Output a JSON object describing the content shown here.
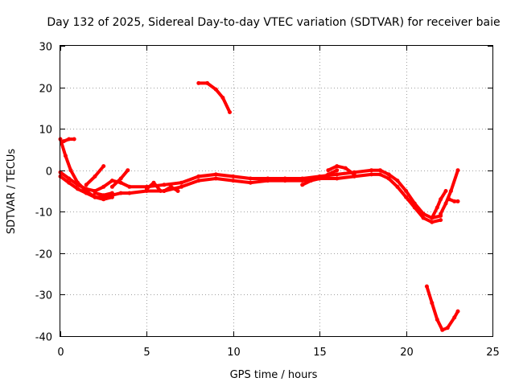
{
  "chart_data": {
    "type": "line",
    "title": "Day 132 of 2025, Sidereal Day-to-day VTEC variation (SDTVAR) for receiver baie",
    "xlabel": "GPS time / hours",
    "ylabel": "SDTVAR / TECUs",
    "xlim": [
      0,
      25
    ],
    "ylim": [
      -40,
      30
    ],
    "xticks": [
      0,
      5,
      10,
      15,
      20,
      25
    ],
    "yticks": [
      -40,
      -30,
      -20,
      -10,
      0,
      10,
      20,
      30
    ],
    "grid": true,
    "color": "#ff0000",
    "series": [
      {
        "name": "main-band-upper",
        "x": [
          0,
          0.5,
          1,
          1.5,
          2,
          2.5,
          3,
          3.5,
          4,
          5,
          6,
          7,
          8,
          9,
          10,
          11,
          12,
          13,
          14,
          15,
          16,
          17,
          18,
          18.5,
          19,
          19.5,
          20,
          20.5,
          21,
          21.5,
          22
        ],
        "values": [
          -0.5,
          -2,
          -3.5,
          -4.5,
          -5,
          -4,
          -2.5,
          -3,
          -4,
          -4,
          -3.5,
          -3,
          -1.5,
          -1,
          -1.5,
          -2,
          -2,
          -2,
          -2,
          -1.5,
          -1,
          -0.5,
          0,
          0,
          -1,
          -2.5,
          -5,
          -8,
          -10.5,
          -11.5,
          -11
        ]
      },
      {
        "name": "main-band-lower",
        "x": [
          0,
          0.5,
          1,
          1.5,
          2,
          2.5,
          3,
          3.5,
          4,
          5,
          6,
          7,
          8,
          9,
          10,
          11,
          12,
          13,
          14,
          15,
          16,
          17,
          18,
          18.5,
          19,
          19.5,
          20,
          20.5,
          21,
          21.5,
          22
        ],
        "values": [
          -1.5,
          -3,
          -4.5,
          -5.5,
          -6.5,
          -6.5,
          -6,
          -5.5,
          -5.5,
          -5,
          -5,
          -4,
          -2.5,
          -2,
          -2.5,
          -3,
          -2.5,
          -2.5,
          -2.5,
          -2,
          -2,
          -1.5,
          -1,
          -1,
          -2,
          -4,
          -6.5,
          -9,
          -11.5,
          -12.5,
          -12
        ]
      },
      {
        "name": "early-arc",
        "x": [
          0,
          0.3,
          0.6,
          1,
          1.5,
          2,
          2.5,
          3
        ],
        "values": [
          7.5,
          3.5,
          0,
          -3,
          -5,
          -6.5,
          -7,
          -6.5
        ]
      },
      {
        "name": "early-spike",
        "x": [
          0.2,
          0.5,
          0.8
        ],
        "values": [
          7,
          7.5,
          7.5
        ]
      },
      {
        "name": "rise-0530",
        "x": [
          1.5,
          2,
          2.5
        ],
        "values": [
          -3.5,
          -1.5,
          1
        ]
      },
      {
        "name": "rise-0400",
        "x": [
          3,
          3.5,
          3.9
        ],
        "values": [
          -4,
          -2,
          0
        ]
      },
      {
        "name": "dip-0230",
        "x": [
          2,
          2.5,
          3
        ],
        "values": [
          -5.5,
          -6,
          -5.5
        ]
      },
      {
        "name": "spike-0530",
        "x": [
          5.0,
          5.4,
          5.8
        ],
        "values": [
          -4.5,
          -3,
          -5
        ]
      },
      {
        "name": "spike-0630",
        "x": [
          6.0,
          6.4,
          6.8
        ],
        "values": [
          -5,
          -4,
          -5
        ]
      },
      {
        "name": "upper-arc-08h",
        "x": [
          8.0,
          8.5,
          9.0,
          9.4,
          9.8
        ],
        "values": [
          21,
          21,
          19.5,
          17.5,
          14
        ]
      },
      {
        "name": "mid-extra-15h",
        "x": [
          14.0,
          14.5,
          15.0,
          15.5,
          16.0
        ],
        "values": [
          -3.5,
          -2.5,
          -2,
          -1,
          0
        ]
      },
      {
        "name": "mid-extra-16h",
        "x": [
          15.5,
          16.0,
          16.5,
          17.0
        ],
        "values": [
          0,
          1,
          0.5,
          -1
        ]
      },
      {
        "name": "late-rise-22h",
        "x": [
          21.5,
          21.8,
          22.0,
          22.3
        ],
        "values": [
          -11.5,
          -9,
          -7,
          -5
        ]
      },
      {
        "name": "late-rise-23h",
        "x": [
          22.0,
          22.3,
          22.6,
          23.0
        ],
        "values": [
          -10.5,
          -8,
          -5,
          0
        ]
      },
      {
        "name": "late-tail",
        "x": [
          22.5,
          22.8,
          23.0
        ],
        "values": [
          -7,
          -7.5,
          -7.5
        ]
      },
      {
        "name": "low-arc-21h",
        "x": [
          21.2,
          21.5,
          21.8,
          22.1,
          22.4,
          22.8,
          23.0
        ],
        "values": [
          -28,
          -32,
          -36,
          -38.5,
          -38,
          -35.5,
          -34
        ]
      }
    ]
  }
}
